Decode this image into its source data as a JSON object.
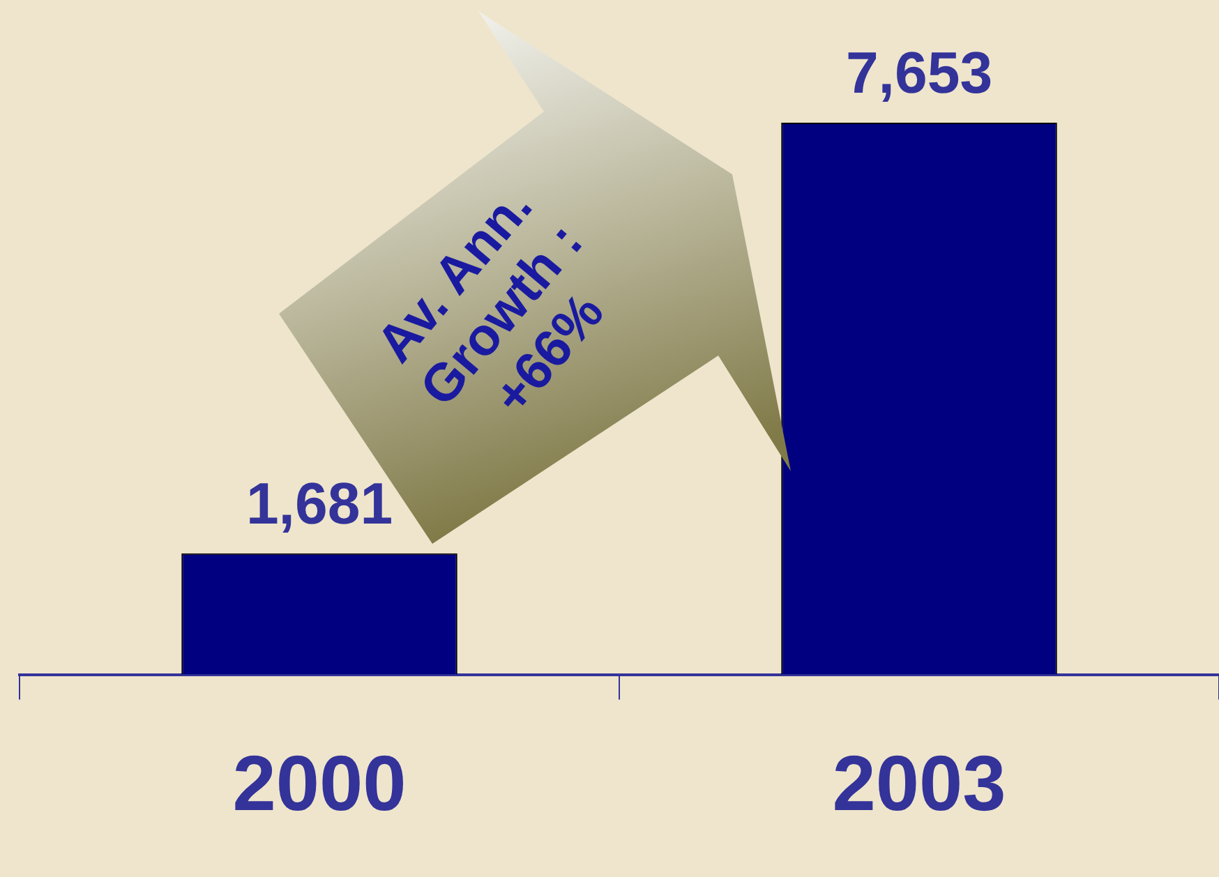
{
  "chart_data": {
    "type": "bar",
    "categories": [
      "2000",
      "2003"
    ],
    "values": [
      1681,
      7653
    ],
    "color": "#000080",
    "value_labels": [
      "1,681",
      "7,653"
    ],
    "grid": false,
    "legend": false,
    "annotations": [
      "Av. Ann. Growth : +66%"
    ]
  }
}
